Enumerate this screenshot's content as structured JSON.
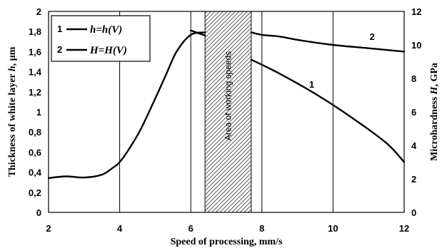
{
  "chart_data": {
    "type": "line",
    "title": "",
    "xlabel": "Speed of processing, mm/s",
    "ylabel_left_prefix": "Thickness of white layer ",
    "ylabel_left_var": "h",
    "ylabel_left_suffix": ", µm",
    "ylabel_right_prefix": "Microhardness ",
    "ylabel_right_var": "H",
    "ylabel_right_suffix": ", GPa",
    "xlim": [
      2,
      12
    ],
    "ylim_left": [
      0,
      2
    ],
    "ylim_right": [
      0,
      12
    ],
    "x_ticks": [
      "2",
      "4",
      "6",
      "8",
      "10",
      "12"
    ],
    "y_left_ticks": [
      "0",
      "0,2",
      "0,4",
      "0,6",
      "0,8",
      "1",
      "1,2",
      "1,4",
      "1,6",
      "1,8",
      "2"
    ],
    "y_right_ticks": [
      "0",
      "2",
      "4",
      "6",
      "8",
      "10",
      "12"
    ],
    "grid": "vertical-only",
    "legend_position": "top-left",
    "legend": [
      {
        "num": "1",
        "label": "h=h(V)"
      },
      {
        "num": "2",
        "label": "H=H(V)"
      }
    ],
    "shaded_region": {
      "x_start": 6.4,
      "x_end": 7.7,
      "label": "Area of working speeds"
    },
    "series": [
      {
        "id": "1",
        "axis": "left",
        "x": [
          6.0,
          6.4,
          7.7,
          8.5,
          9.5,
          10.5,
          11.5,
          12.0
        ],
        "y": [
          1.81,
          1.76,
          1.52,
          1.38,
          1.18,
          0.95,
          0.69,
          0.5
        ]
      },
      {
        "id": "2",
        "axis": "right",
        "x": [
          2.0,
          2.5,
          3.0,
          3.5,
          3.8,
          4.0,
          4.3,
          4.6,
          5.0,
          5.3,
          5.6,
          6.0,
          6.4,
          7.7,
          8.0,
          8.5,
          9.0,
          10.0,
          11.0,
          12.0
        ],
        "y": [
          2.05,
          2.15,
          2.08,
          2.25,
          2.65,
          3.0,
          3.9,
          5.0,
          6.8,
          8.2,
          9.6,
          10.6,
          10.75,
          10.75,
          10.6,
          10.5,
          10.3,
          10.0,
          9.8,
          9.6
        ]
      }
    ],
    "curve_labels": [
      {
        "text": "1",
        "series": "1",
        "x": 9.4,
        "y": 1.24,
        "axis": "left"
      },
      {
        "text": "2",
        "series": "2",
        "x": 11.1,
        "y": 10.3,
        "axis": "right"
      }
    ]
  }
}
